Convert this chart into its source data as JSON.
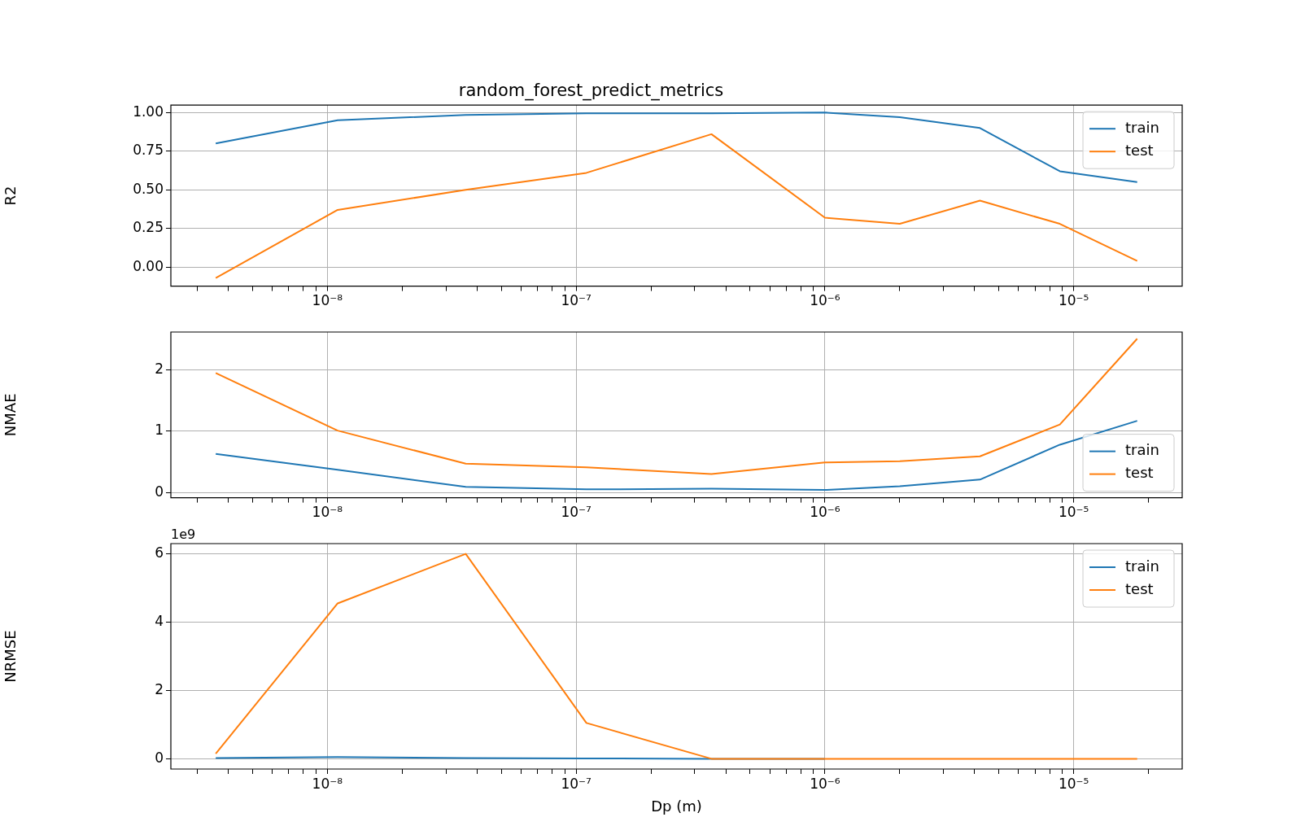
{
  "chart_data": [
    {
      "type": "line",
      "title": "random_forest_predict_metrics",
      "ylabel": "R2",
      "log": "x",
      "grid": true,
      "legend": "top right",
      "x": [
        3.56e-09,
        1.1e-08,
        3.6e-08,
        1.1e-07,
        3.5e-07,
        1e-06,
        2e-06,
        4.2e-06,
        8.8e-06,
        1.8e-05
      ],
      "xlim": [
        2.35e-09,
        2.73e-05
      ],
      "xticks": [
        {
          "value": 3e-09,
          "label": null
        },
        {
          "value": 4e-09,
          "label": null
        },
        {
          "value": 5e-09,
          "label": null
        },
        {
          "value": 6e-09,
          "label": null
        },
        {
          "value": 7e-09,
          "label": null
        },
        {
          "value": 8e-09,
          "label": null
        },
        {
          "value": 9e-09,
          "label": null
        },
        {
          "value": 1e-08,
          "label": "10⁻⁸"
        },
        {
          "value": 2e-08,
          "label": null
        },
        {
          "value": 3e-08,
          "label": null
        },
        {
          "value": 4e-08,
          "label": null
        },
        {
          "value": 5e-08,
          "label": null
        },
        {
          "value": 6e-08,
          "label": null
        },
        {
          "value": 7e-08,
          "label": null
        },
        {
          "value": 8e-08,
          "label": null
        },
        {
          "value": 9e-08,
          "label": null
        },
        {
          "value": 1e-07,
          "label": "10⁻⁷"
        },
        {
          "value": 2e-07,
          "label": null
        },
        {
          "value": 3e-07,
          "label": null
        },
        {
          "value": 4e-07,
          "label": null
        },
        {
          "value": 5e-07,
          "label": null
        },
        {
          "value": 6e-07,
          "label": null
        },
        {
          "value": 7e-07,
          "label": null
        },
        {
          "value": 8e-07,
          "label": null
        },
        {
          "value": 9e-07,
          "label": null
        },
        {
          "value": 1e-06,
          "label": "10⁻⁶"
        },
        {
          "value": 2e-06,
          "label": null
        },
        {
          "value": 3e-06,
          "label": null
        },
        {
          "value": 4e-06,
          "label": null
        },
        {
          "value": 5e-06,
          "label": null
        },
        {
          "value": 6e-06,
          "label": null
        },
        {
          "value": 7e-06,
          "label": null
        },
        {
          "value": 8e-06,
          "label": null
        },
        {
          "value": 9e-06,
          "label": null
        },
        {
          "value": 1e-05,
          "label": "10⁻⁵"
        },
        {
          "value": 2e-05,
          "label": null
        }
      ],
      "ylim": [
        -0.123,
        1.048
      ],
      "yticks": [
        {
          "value": 0,
          "label": "0.00"
        },
        {
          "value": 0.25,
          "label": "0.25"
        },
        {
          "value": 0.5,
          "label": "0.50"
        },
        {
          "value": 0.75,
          "label": "0.75"
        },
        {
          "value": 1,
          "label": "1.00"
        }
      ],
      "series": [
        {
          "name": "train",
          "color": "#1f77b4",
          "values": [
            0.8,
            0.95,
            0.985,
            0.995,
            0.995,
            1.0,
            0.97,
            0.9,
            0.62,
            0.55
          ]
        },
        {
          "name": "test",
          "color": "#ff7f0e",
          "values": [
            -0.07,
            0.37,
            0.5,
            0.61,
            0.86,
            0.32,
            0.28,
            0.43,
            0.28,
            0.04
          ]
        }
      ]
    },
    {
      "type": "line",
      "ylabel": "NMAE",
      "log": "x",
      "grid": true,
      "legend": "bottom right",
      "x": [
        3.56e-09,
        1.1e-08,
        3.6e-08,
        1.1e-07,
        3.5e-07,
        1e-06,
        2e-06,
        4.2e-06,
        8.8e-06,
        1.8e-05
      ],
      "xlim": [
        2.35e-09,
        2.73e-05
      ],
      "xticks": [
        {
          "value": 3e-09,
          "label": null
        },
        {
          "value": 4e-09,
          "label": null
        },
        {
          "value": 5e-09,
          "label": null
        },
        {
          "value": 6e-09,
          "label": null
        },
        {
          "value": 7e-09,
          "label": null
        },
        {
          "value": 8e-09,
          "label": null
        },
        {
          "value": 9e-09,
          "label": null
        },
        {
          "value": 1e-08,
          "label": "10⁻⁸"
        },
        {
          "value": 2e-08,
          "label": null
        },
        {
          "value": 3e-08,
          "label": null
        },
        {
          "value": 4e-08,
          "label": null
        },
        {
          "value": 5e-08,
          "label": null
        },
        {
          "value": 6e-08,
          "label": null
        },
        {
          "value": 7e-08,
          "label": null
        },
        {
          "value": 8e-08,
          "label": null
        },
        {
          "value": 9e-08,
          "label": null
        },
        {
          "value": 1e-07,
          "label": "10⁻⁷"
        },
        {
          "value": 2e-07,
          "label": null
        },
        {
          "value": 3e-07,
          "label": null
        },
        {
          "value": 4e-07,
          "label": null
        },
        {
          "value": 5e-07,
          "label": null
        },
        {
          "value": 6e-07,
          "label": null
        },
        {
          "value": 7e-07,
          "label": null
        },
        {
          "value": 8e-07,
          "label": null
        },
        {
          "value": 9e-07,
          "label": null
        },
        {
          "value": 1e-06,
          "label": "10⁻⁶"
        },
        {
          "value": 2e-06,
          "label": null
        },
        {
          "value": 3e-06,
          "label": null
        },
        {
          "value": 4e-06,
          "label": null
        },
        {
          "value": 5e-06,
          "label": null
        },
        {
          "value": 6e-06,
          "label": null
        },
        {
          "value": 7e-06,
          "label": null
        },
        {
          "value": 8e-06,
          "label": null
        },
        {
          "value": 9e-06,
          "label": null
        },
        {
          "value": 1e-05,
          "label": "10⁻⁵"
        },
        {
          "value": 2e-05,
          "label": null
        }
      ],
      "ylim": [
        -0.086,
        2.62
      ],
      "yticks": [
        0,
        1,
        2
      ],
      "series": [
        {
          "name": "train",
          "color": "#1f77b4",
          "values": [
            0.63,
            0.37,
            0.09,
            0.05,
            0.06,
            0.04,
            0.1,
            0.21,
            0.78,
            1.17
          ]
        },
        {
          "name": "test",
          "color": "#ff7f0e",
          "values": [
            1.95,
            1.01,
            0.47,
            0.41,
            0.3,
            0.49,
            0.51,
            0.59,
            1.11,
            2.51
          ]
        }
      ]
    },
    {
      "type": "line",
      "ylabel": "NRMSE",
      "xlabel": "Dp (m)",
      "log": "x",
      "grid": true,
      "legend": "top right",
      "annotations": [
        "1e9"
      ],
      "x": [
        3.56e-09,
        1.1e-08,
        3.6e-08,
        1.1e-07,
        3.5e-07,
        1e-06,
        2e-06,
        4.2e-06,
        8.8e-06,
        1.8e-05
      ],
      "xlim": [
        2.35e-09,
        2.73e-05
      ],
      "xticks": [
        {
          "value": 3e-09,
          "label": null
        },
        {
          "value": 4e-09,
          "label": null
        },
        {
          "value": 5e-09,
          "label": null
        },
        {
          "value": 6e-09,
          "label": null
        },
        {
          "value": 7e-09,
          "label": null
        },
        {
          "value": 8e-09,
          "label": null
        },
        {
          "value": 9e-09,
          "label": null
        },
        {
          "value": 1e-08,
          "label": "10⁻⁸"
        },
        {
          "value": 2e-08,
          "label": null
        },
        {
          "value": 3e-08,
          "label": null
        },
        {
          "value": 4e-08,
          "label": null
        },
        {
          "value": 5e-08,
          "label": null
        },
        {
          "value": 6e-08,
          "label": null
        },
        {
          "value": 7e-08,
          "label": null
        },
        {
          "value": 8e-08,
          "label": null
        },
        {
          "value": 9e-08,
          "label": null
        },
        {
          "value": 1e-07,
          "label": "10⁻⁷"
        },
        {
          "value": 2e-07,
          "label": null
        },
        {
          "value": 3e-07,
          "label": null
        },
        {
          "value": 4e-07,
          "label": null
        },
        {
          "value": 5e-07,
          "label": null
        },
        {
          "value": 6e-07,
          "label": null
        },
        {
          "value": 7e-07,
          "label": null
        },
        {
          "value": 8e-07,
          "label": null
        },
        {
          "value": 9e-07,
          "label": null
        },
        {
          "value": 1e-06,
          "label": "10⁻⁶"
        },
        {
          "value": 2e-06,
          "label": null
        },
        {
          "value": 3e-06,
          "label": null
        },
        {
          "value": 4e-06,
          "label": null
        },
        {
          "value": 5e-06,
          "label": null
        },
        {
          "value": 6e-06,
          "label": null
        },
        {
          "value": 7e-06,
          "label": null
        },
        {
          "value": 8e-06,
          "label": null
        },
        {
          "value": 9e-06,
          "label": null
        },
        {
          "value": 1e-05,
          "label": "10⁻⁵"
        },
        {
          "value": 2e-05,
          "label": null
        }
      ],
      "ylim": [
        -0.3,
        6.3
      ],
      "yticks": [
        0,
        2,
        4,
        6
      ],
      "series": [
        {
          "name": "train",
          "color": "#1f77b4",
          "values": [
            0.02,
            0.05,
            0.02,
            0.01,
            0,
            0,
            null,
            null,
            null,
            null
          ]
        },
        {
          "name": "test",
          "color": "#ff7f0e",
          "values": [
            0.15,
            4.55,
            6.0,
            1.05,
            0,
            0,
            0,
            0,
            0,
            0
          ]
        }
      ]
    }
  ]
}
